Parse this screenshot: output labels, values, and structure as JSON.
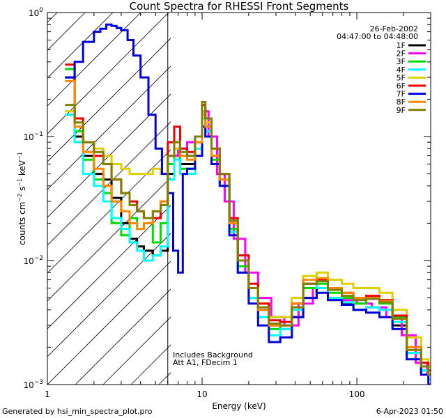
{
  "footer": {
    "left": "Generated by hsi_min_spectra_plot.pro",
    "right": "6-Apr-2023 01:50"
  },
  "chart_data": {
    "type": "line",
    "title": "Count Spectra for RHESSI Front Segments",
    "xlabel": "Energy (keV)",
    "ylabel": "counts cm-2 s-1 keV-1",
    "xscale": "log",
    "yscale": "log",
    "xlim": [
      1,
      300
    ],
    "ylim": [
      0.001,
      1
    ],
    "x_ticks": [
      {
        "value": 1,
        "label": "1"
      },
      {
        "value": 10,
        "label": "10"
      },
      {
        "value": 100,
        "label": "100"
      }
    ],
    "y_ticks": [
      {
        "value": 1,
        "label": "10^0"
      },
      {
        "value": 0.1,
        "label": "10^-1"
      },
      {
        "value": 0.01,
        "label": "10^-2"
      },
      {
        "value": 0.001,
        "label": "10^-3"
      }
    ],
    "shaded_region": {
      "from": 1,
      "to": 6,
      "pattern": "diagonal-hatch"
    },
    "date_text": "26-Feb-2002",
    "time_range_text": "04:47:00 to 04:48:00",
    "annotations": [
      "Includes Background",
      "Att A1, FDecim 1"
    ],
    "legend_position": "top-right",
    "series": [
      {
        "name": "1F",
        "color": "#000000",
        "x": [
          1.3,
          1.5,
          1.7,
          2.0,
          2.3,
          2.6,
          3.0,
          3.4,
          3.8,
          4.2,
          4.8,
          5.4,
          6.0,
          6.6,
          7.2,
          8.0,
          9.0,
          10.0,
          10.5,
          11.5,
          13,
          15,
          17,
          20,
          23,
          27,
          32,
          38,
          45,
          55,
          65,
          80,
          95,
          115,
          140,
          170,
          210,
          260,
          290
        ],
        "y": [
          0.3,
          0.1,
          0.07,
          0.05,
          0.045,
          0.032,
          0.02,
          0.015,
          0.013,
          0.012,
          0.011,
          0.012,
          0.05,
          0.07,
          0.06,
          0.06,
          0.09,
          0.15,
          0.12,
          0.07,
          0.045,
          0.02,
          0.01,
          0.006,
          0.004,
          0.003,
          0.0028,
          0.0035,
          0.005,
          0.006,
          0.005,
          0.0045,
          0.004,
          0.0042,
          0.004,
          0.003,
          0.0018,
          0.0013,
          0.0012
        ]
      },
      {
        "name": "2F",
        "color": "#ff00ff",
        "x": [
          6.0,
          7.0,
          8.0,
          9.0,
          10.0,
          11.0,
          12.5,
          14,
          16,
          19,
          23,
          28,
          34,
          42,
          52,
          65,
          80,
          100,
          125,
          155,
          195,
          240,
          285
        ],
        "y": [
          0.07,
          0.08,
          0.09,
          0.1,
          0.16,
          0.1,
          0.05,
          0.03,
          0.015,
          0.008,
          0.005,
          0.0035,
          0.003,
          0.0045,
          0.006,
          0.005,
          0.0048,
          0.0045,
          0.0042,
          0.0035,
          0.0025,
          0.0015,
          0.0012
        ]
      },
      {
        "name": "3F",
        "color": "#00dd00",
        "x": [
          1.3,
          1.5,
          1.7,
          2.0,
          2.3,
          2.6,
          3.0,
          3.4,
          3.8,
          4.2,
          4.8,
          5.4,
          6.0,
          6.6,
          7.2,
          8.0,
          9.0,
          10.0,
          10.5,
          11.5,
          13,
          15,
          17,
          20,
          23,
          27,
          32,
          38,
          45,
          55,
          65,
          80,
          95,
          115,
          140,
          170,
          210,
          260,
          290
        ],
        "y": [
          0.35,
          0.11,
          0.065,
          0.045,
          0.035,
          0.02,
          0.016,
          0.022,
          0.018,
          0.02,
          0.014,
          0.02,
          0.06,
          0.08,
          0.055,
          0.055,
          0.09,
          0.16,
          0.12,
          0.065,
          0.04,
          0.018,
          0.009,
          0.005,
          0.0035,
          0.0028,
          0.003,
          0.004,
          0.006,
          0.0065,
          0.0055,
          0.005,
          0.0045,
          0.005,
          0.0045,
          0.0035,
          0.002,
          0.0015,
          0.0013
        ]
      },
      {
        "name": "4F",
        "color": "#00ffff",
        "x": [
          1.3,
          1.5,
          1.7,
          2.0,
          2.3,
          2.6,
          3.0,
          3.4,
          3.8,
          4.2,
          4.8,
          5.4,
          6.0,
          6.6,
          7.2,
          8.0,
          9.0,
          10.0,
          10.5,
          11.5,
          13,
          15,
          17,
          20,
          23,
          27,
          32,
          38,
          45,
          55,
          65,
          80,
          95,
          115,
          140,
          170,
          210,
          260,
          290
        ],
        "y": [
          0.15,
          0.09,
          0.05,
          0.04,
          0.03,
          0.022,
          0.018,
          0.014,
          0.012,
          0.01,
          0.011,
          0.013,
          0.045,
          0.065,
          0.05,
          0.05,
          0.08,
          0.14,
          0.11,
          0.06,
          0.04,
          0.017,
          0.008,
          0.005,
          0.0035,
          0.0025,
          0.0028,
          0.004,
          0.0065,
          0.006,
          0.005,
          0.0046,
          0.004,
          0.0042,
          0.004,
          0.0032,
          0.0018,
          0.0013,
          0.0011
        ]
      },
      {
        "name": "5F",
        "color": "#e0d000",
        "x": [
          1.3,
          1.5,
          1.7,
          2.0,
          2.3,
          2.6,
          3.0,
          3.4,
          3.8,
          4.2,
          4.8,
          5.4,
          6.0,
          6.6,
          7.2,
          8.0,
          9.0,
          10.0,
          10.5,
          11.5,
          13,
          15,
          17,
          20,
          23,
          27,
          32,
          38,
          45,
          55,
          65,
          80,
          95,
          115,
          140,
          170,
          210,
          260,
          290
        ],
        "y": [
          0.16,
          0.14,
          0.09,
          0.08,
          0.07,
          0.06,
          0.055,
          0.05,
          0.05,
          0.05,
          0.055,
          0.05,
          0.07,
          0.08,
          0.07,
          0.07,
          0.1,
          0.16,
          0.13,
          0.07,
          0.045,
          0.02,
          0.011,
          0.006,
          0.0045,
          0.0035,
          0.0035,
          0.005,
          0.0075,
          0.008,
          0.007,
          0.0065,
          0.006,
          0.006,
          0.0055,
          0.004,
          0.0024,
          0.0016,
          0.0014
        ]
      },
      {
        "name": "6F",
        "color": "#ee0000",
        "x": [
          1.3,
          1.5,
          1.7,
          2.0,
          2.3,
          2.6,
          3.0,
          3.4,
          3.8,
          4.2,
          4.8,
          5.4,
          6.0,
          6.6,
          7.2,
          8.0,
          9.0,
          10.0,
          10.5,
          11.5,
          13,
          15,
          17,
          20,
          23,
          27,
          32,
          38,
          45,
          55,
          65,
          80,
          95,
          115,
          140,
          170,
          210,
          260,
          290
        ],
        "y": [
          0.38,
          0.14,
          0.09,
          0.07,
          0.06,
          0.045,
          0.035,
          0.03,
          0.025,
          0.022,
          0.022,
          0.03,
          0.09,
          0.12,
          0.08,
          0.075,
          0.1,
          0.18,
          0.14,
          0.08,
          0.05,
          0.022,
          0.011,
          0.0065,
          0.0045,
          0.0033,
          0.0032,
          0.0045,
          0.0065,
          0.007,
          0.006,
          0.0055,
          0.005,
          0.0052,
          0.0048,
          0.0036,
          0.002,
          0.0015,
          0.0013
        ]
      },
      {
        "name": "7F",
        "color": "#0000dd",
        "x": [
          1.3,
          1.5,
          1.7,
          2.0,
          2.2,
          2.4,
          2.6,
          2.8,
          3.0,
          3.3,
          3.6,
          4.0,
          4.5,
          5.0,
          5.5,
          6.0,
          6.5,
          7.0,
          7.5,
          8.0,
          9.0,
          10.0,
          10.5,
          11.5,
          13,
          15,
          17,
          20,
          23,
          27,
          32,
          38,
          45,
          55,
          65,
          80,
          95,
          115,
          140,
          170,
          210,
          260,
          290
        ],
        "y": [
          0.3,
          0.4,
          0.58,
          0.7,
          0.74,
          0.8,
          0.78,
          0.75,
          0.72,
          0.6,
          0.45,
          0.3,
          0.15,
          0.08,
          0.05,
          0.035,
          0.012,
          0.008,
          0.05,
          0.055,
          0.07,
          0.12,
          0.1,
          0.06,
          0.04,
          0.016,
          0.008,
          0.0045,
          0.003,
          0.0022,
          0.0024,
          0.0035,
          0.005,
          0.0055,
          0.0048,
          0.0044,
          0.004,
          0.0038,
          0.0035,
          0.0028,
          0.0016,
          0.0012,
          0.001
        ]
      },
      {
        "name": "8F",
        "color": "#ff8800",
        "x": [
          1.3,
          1.5,
          1.7,
          2.0,
          2.3,
          2.6,
          3.0,
          3.4,
          3.8,
          4.2,
          4.8,
          5.4,
          6.0,
          6.6,
          7.2,
          8.0,
          9.0,
          10.0,
          10.5,
          11.5,
          13,
          15,
          17,
          20,
          23,
          27,
          32,
          38,
          45,
          55,
          65,
          80,
          95,
          115,
          140,
          170,
          210,
          260,
          290
        ],
        "y": [
          0.28,
          0.12,
          0.075,
          0.055,
          0.04,
          0.03,
          0.025,
          0.02,
          0.018,
          0.02,
          0.025,
          0.03,
          0.07,
          0.09,
          0.07,
          0.065,
          0.09,
          0.15,
          0.12,
          0.07,
          0.045,
          0.02,
          0.01,
          0.006,
          0.004,
          0.003,
          0.003,
          0.0045,
          0.007,
          0.0072,
          0.006,
          0.0055,
          0.005,
          0.005,
          0.0047,
          0.0034,
          0.002,
          0.0014,
          0.0012
        ]
      },
      {
        "name": "9F",
        "color": "#808000",
        "x": [
          1.3,
          1.5,
          1.7,
          2.0,
          2.3,
          2.6,
          3.0,
          3.4,
          3.8,
          4.2,
          4.8,
          5.4,
          6.0,
          6.6,
          7.2,
          8.0,
          9.0,
          10.0,
          10.5,
          11.5,
          13,
          15,
          17,
          20,
          23,
          27,
          32,
          38,
          45,
          55,
          65,
          80,
          95,
          115,
          140,
          170,
          210,
          260,
          290
        ],
        "y": [
          0.18,
          0.13,
          0.09,
          0.075,
          0.06,
          0.045,
          0.035,
          0.028,
          0.025,
          0.022,
          0.025,
          0.028,
          0.07,
          0.09,
          0.075,
          0.07,
          0.1,
          0.19,
          0.14,
          0.08,
          0.05,
          0.021,
          0.01,
          0.006,
          0.0042,
          0.0031,
          0.003,
          0.0042,
          0.0065,
          0.0068,
          0.0058,
          0.0052,
          0.0048,
          0.0049,
          0.0046,
          0.0034,
          0.0019,
          0.0014,
          0.0012
        ]
      }
    ]
  }
}
